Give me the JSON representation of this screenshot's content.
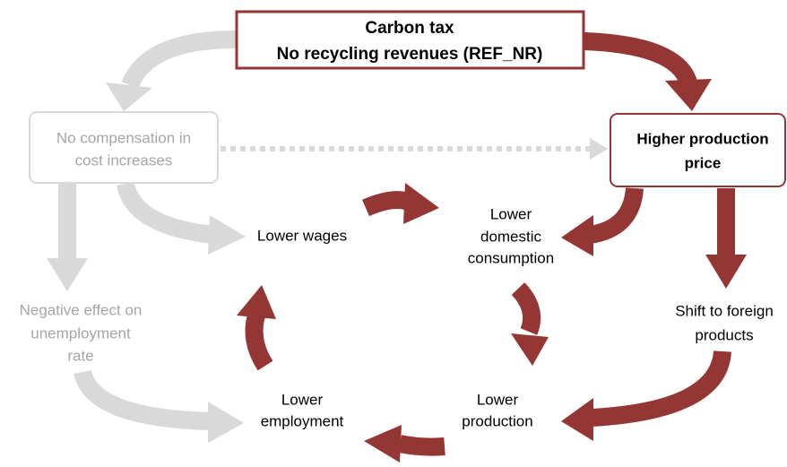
{
  "nodes": [
    {
      "id": "carbon-tax",
      "lines": [
        "Carbon tax",
        "No recycling revenues (REF_NR)"
      ]
    },
    {
      "id": "no-compensation",
      "lines": [
        "No compensation in",
        "cost increases"
      ]
    },
    {
      "id": "higher-price",
      "lines": [
        "Higher production",
        "price"
      ]
    },
    {
      "id": "lower-wages",
      "lines": [
        "Lower wages"
      ]
    },
    {
      "id": "lower-consumption",
      "lines": [
        "Lower",
        "domestic",
        "consumption"
      ]
    },
    {
      "id": "negative-effect",
      "lines": [
        "Negative effect on",
        "unemployment",
        "rate"
      ]
    },
    {
      "id": "shift-foreign",
      "lines": [
        "Shift to foreign",
        "products"
      ]
    },
    {
      "id": "lower-employment",
      "lines": [
        "Lower",
        "employment"
      ]
    },
    {
      "id": "lower-production",
      "lines": [
        "Lower",
        "production"
      ]
    }
  ]
}
